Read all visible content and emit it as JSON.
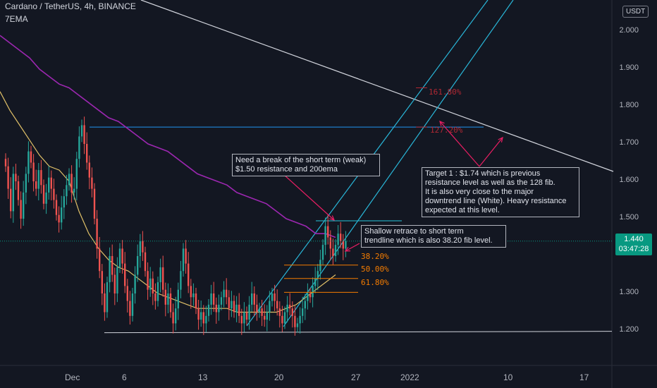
{
  "header": {
    "title": "Cardano / TetherUS, 4h, BINANCE",
    "indicator": "7EMA"
  },
  "currency_button": "USDT",
  "price_badge": {
    "price": "1.440",
    "countdown": "03:47:28"
  },
  "annotations": {
    "note1": "Need a break of the short term (weak)\n$1.50 resistance and 200ema",
    "note2": "Target 1 : $1.74 which is previous\nresistance level as well as the 128 fib.\nIt is also very close to the major\ndowntrend line (White).  Heavy resistance\nexpected at this level.",
    "note3": "Shallow retrace to short term\ntrendline which is also 38.20 fib level."
  },
  "fib_levels": [
    {
      "label": "161.80%",
      "price": 1.85,
      "color": "#b22833"
    },
    {
      "label": "127.20%",
      "price": 1.745,
      "color": "#b22833"
    },
    {
      "label": "38.20%",
      "price": 1.376,
      "color": "#f57c00"
    },
    {
      "label": "50.00%",
      "price": 1.34,
      "color": "#f57c00"
    },
    {
      "label": "61.80%",
      "price": 1.303,
      "color": "#f57c00"
    }
  ],
  "colors": {
    "bg": "#131722",
    "up": "#26a69a",
    "down": "#ef5350",
    "ema_long": "#9c27b0",
    "ema_mid": "#e0c068",
    "channel": "#29b6d8",
    "downtrend": "#d1d4dc"
  },
  "chart_data": {
    "type": "candlestick",
    "title": "Cardano / TetherUS, 4h, BINANCE",
    "ylim": [
      1.15,
      2.08
    ],
    "y_ticks": [
      "2.000",
      "1.900",
      "1.800",
      "1.700",
      "1.600",
      "1.500",
      "1.400",
      "1.300",
      "1.200"
    ],
    "y_tick_values": [
      2.0,
      1.9,
      1.8,
      1.7,
      1.6,
      1.5,
      1.4,
      1.3,
      1.2
    ],
    "x_ticks": [
      "Dec",
      "6",
      "13",
      "20",
      "27",
      "2022",
      "10",
      "17"
    ],
    "x_tick_index": [
      0,
      30,
      72,
      114,
      156,
      198,
      240,
      282
    ],
    "closes": [
      1.64,
      1.58,
      1.52,
      1.62,
      1.6,
      1.55,
      1.5,
      1.57,
      1.62,
      1.68,
      1.65,
      1.6,
      1.58,
      1.63,
      1.59,
      1.54,
      1.57,
      1.61,
      1.58,
      1.55,
      1.51,
      1.49,
      1.53,
      1.56,
      1.59,
      1.62,
      1.57,
      1.58,
      1.66,
      1.72,
      1.75,
      1.7,
      1.65,
      1.61,
      1.58,
      1.5,
      1.42,
      1.36,
      1.3,
      1.25,
      1.33,
      1.4,
      1.35,
      1.3,
      1.37,
      1.42,
      1.38,
      1.32,
      1.28,
      1.24,
      1.3,
      1.35,
      1.4,
      1.44,
      1.41,
      1.36,
      1.31,
      1.34,
      1.3,
      1.28,
      1.33,
      1.37,
      1.31,
      1.27,
      1.3,
      1.25,
      1.22,
      1.26,
      1.31,
      1.36,
      1.42,
      1.38,
      1.32,
      1.29,
      1.3,
      1.26,
      1.23,
      1.25,
      1.22,
      1.24,
      1.27,
      1.3,
      1.27,
      1.25,
      1.27,
      1.29,
      1.31,
      1.29,
      1.26,
      1.28,
      1.25,
      1.27,
      1.24,
      1.22,
      1.25,
      1.23,
      1.27,
      1.3,
      1.27,
      1.25,
      1.26,
      1.24,
      1.23,
      1.25,
      1.28,
      1.3,
      1.28,
      1.26,
      1.24,
      1.22,
      1.25,
      1.27,
      1.26,
      1.24,
      1.21,
      1.22,
      1.24,
      1.26,
      1.28,
      1.3,
      1.29,
      1.32,
      1.34,
      1.36,
      1.39,
      1.43,
      1.48,
      1.45,
      1.42,
      1.4,
      1.43,
      1.46,
      1.44,
      1.42,
      1.44
    ],
    "ema_200": [
      1.99,
      1.97,
      1.95,
      1.93,
      1.9,
      1.88,
      1.86,
      1.85,
      1.83,
      1.81,
      1.79,
      1.77,
      1.76,
      1.74,
      1.72,
      1.7,
      1.69,
      1.68,
      1.66,
      1.64,
      1.62,
      1.61,
      1.6,
      1.59,
      1.57,
      1.56,
      1.55,
      1.54,
      1.52,
      1.5,
      1.49,
      1.48,
      1.46,
      1.46,
      1.45
    ],
    "ema_mid": [
      1.84,
      1.79,
      1.75,
      1.71,
      1.67,
      1.64,
      1.63,
      1.6,
      1.52,
      1.46,
      1.42,
      1.39,
      1.37,
      1.36,
      1.34,
      1.32,
      1.3,
      1.29,
      1.28,
      1.27,
      1.26,
      1.26,
      1.26,
      1.26,
      1.25,
      1.25,
      1.25,
      1.25,
      1.25,
      1.26,
      1.27,
      1.29,
      1.31,
      1.33,
      1.35
    ],
    "resistance_level": 1.745,
    "support_level": 1.195
  }
}
